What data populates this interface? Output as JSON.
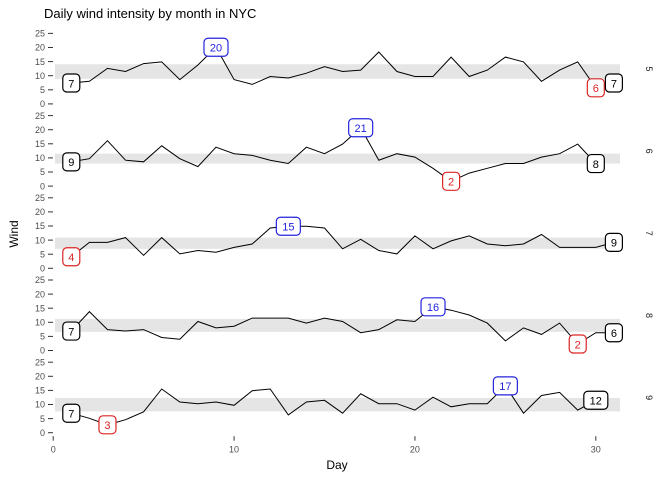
{
  "title": "Daily wind intensity by month in NYC",
  "axes": {
    "x_label": "Day",
    "y_label": "Wind",
    "x_tick_labels": [
      "0",
      "10",
      "20",
      "30"
    ],
    "x_tick_values": [
      0,
      10,
      20,
      30
    ],
    "y_tick_labels": [
      "0",
      "5",
      "10",
      "15",
      "20",
      "25"
    ],
    "y_tick_values": [
      0,
      5,
      10,
      15,
      20,
      25
    ]
  },
  "colors": {
    "background": "#FFFFFF",
    "line": "#000000",
    "band": "#E5E5E5",
    "label_first": "#000000",
    "label_last": "#000000",
    "label_max": "#2424DD",
    "label_min": "#DD2424",
    "tick_mark": "#333333",
    "tick_text": "#4D4D4D",
    "strip_text": "#1A1A1A"
  },
  "chart_data": {
    "type": "line",
    "title": "Daily wind intensity by month in NYC",
    "xlabel": "Day",
    "ylabel": "Wind",
    "x_range": [
      0,
      31
    ],
    "y_range": [
      0,
      25
    ],
    "grid": false,
    "legend": "none",
    "facet_side": "right",
    "facets": [
      {
        "strip": "5",
        "days_start": 1,
        "values": [
          7.4,
          8.0,
          12.6,
          11.5,
          14.3,
          14.9,
          8.6,
          13.8,
          20.1,
          8.6,
          6.9,
          9.7,
          9.2,
          10.9,
          13.2,
          11.5,
          12.0,
          18.4,
          11.5,
          9.7,
          9.7,
          16.6,
          9.7,
          12.0,
          16.6,
          14.9,
          8.0,
          12.0,
          14.9,
          5.7,
          7.4
        ],
        "iqr_band": [
          8.9,
          14.05
        ],
        "labels": [
          {
            "day": 1,
            "text": "7",
            "kind": "first"
          },
          {
            "day": 9,
            "text": "20",
            "kind": "max"
          },
          {
            "day": 30,
            "text": "6",
            "kind": "min"
          },
          {
            "day": 31,
            "text": "7",
            "kind": "last"
          }
        ]
      },
      {
        "strip": "6",
        "days_start": 1,
        "values": [
          8.6,
          9.7,
          16.1,
          9.2,
          8.6,
          14.3,
          9.7,
          6.9,
          13.8,
          11.5,
          10.9,
          9.2,
          8.0,
          13.8,
          11.5,
          14.9,
          20.7,
          9.2,
          11.5,
          10.3,
          6.3,
          1.7,
          4.6,
          6.3,
          8.0,
          8.0,
          10.3,
          11.5,
          14.9,
          8.0
        ],
        "iqr_band": [
          8.0,
          11.5
        ],
        "labels": [
          {
            "day": 1,
            "text": "9",
            "kind": "first"
          },
          {
            "day": 17,
            "text": "21",
            "kind": "max"
          },
          {
            "day": 22,
            "text": "2",
            "kind": "min"
          },
          {
            "day": 30,
            "text": "8",
            "kind": "last"
          }
        ]
      },
      {
        "strip": "7",
        "days_start": 1,
        "values": [
          4.1,
          9.2,
          9.2,
          10.9,
          4.6,
          10.9,
          5.1,
          6.3,
          5.7,
          7.4,
          8.6,
          14.3,
          14.9,
          14.9,
          14.3,
          6.9,
          10.3,
          6.3,
          5.1,
          11.5,
          6.9,
          9.7,
          11.5,
          8.6,
          8.0,
          8.6,
          12.0,
          7.4,
          7.4,
          7.4,
          9.2
        ],
        "iqr_band": [
          6.9,
          10.9
        ],
        "labels": [
          {
            "day": 1,
            "text": "4",
            "kind": "min"
          },
          {
            "day": 13,
            "text": "15",
            "kind": "max"
          },
          {
            "day": 31,
            "text": "9",
            "kind": "last"
          }
        ]
      },
      {
        "strip": "8",
        "days_start": 1,
        "values": [
          6.9,
          13.8,
          7.4,
          6.9,
          7.4,
          4.6,
          4.0,
          10.3,
          8.0,
          8.6,
          11.5,
          11.5,
          11.5,
          9.7,
          11.5,
          10.3,
          6.3,
          7.4,
          10.9,
          10.3,
          15.5,
          14.3,
          12.6,
          9.7,
          3.4,
          8.0,
          5.7,
          9.7,
          2.3,
          6.3,
          6.3
        ],
        "iqr_band": [
          6.6,
          11.2
        ],
        "labels": [
          {
            "day": 1,
            "text": "7",
            "kind": "first"
          },
          {
            "day": 21,
            "text": "16",
            "kind": "max"
          },
          {
            "day": 29,
            "text": "2",
            "kind": "min"
          },
          {
            "day": 31,
            "text": "6",
            "kind": "last"
          }
        ]
      },
      {
        "strip": "9",
        "days_start": 1,
        "values": [
          6.9,
          5.1,
          2.8,
          4.6,
          7.4,
          15.5,
          10.9,
          10.3,
          10.9,
          9.7,
          14.9,
          15.5,
          6.3,
          10.9,
          11.5,
          6.9,
          13.8,
          10.3,
          10.3,
          8.0,
          12.6,
          9.2,
          10.3,
          10.3,
          16.6,
          6.9,
          13.2,
          14.3,
          8.0,
          11.5
        ],
        "iqr_band": [
          7.55,
          12.33
        ],
        "labels": [
          {
            "day": 1,
            "text": "7",
            "kind": "first"
          },
          {
            "day": 3,
            "text": "3",
            "kind": "min"
          },
          {
            "day": 25,
            "text": "17",
            "kind": "max"
          },
          {
            "day": 30,
            "text": "12",
            "kind": "last"
          }
        ]
      }
    ]
  }
}
